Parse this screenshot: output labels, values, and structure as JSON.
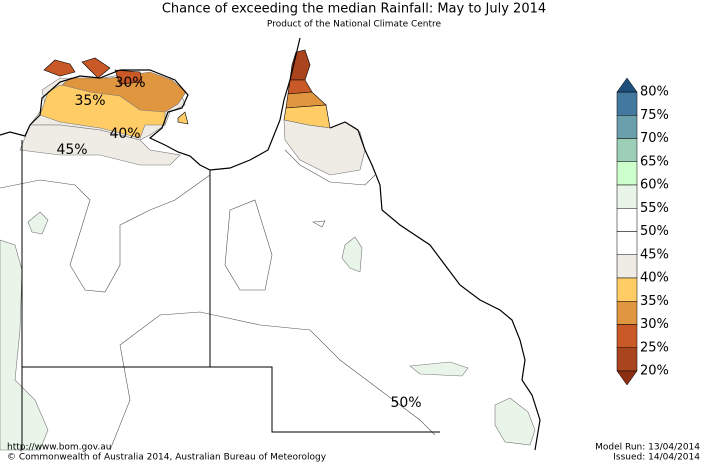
{
  "header": {
    "title": "Chance of exceeding the median Rainfall: May to July 2014",
    "subtitle": "Product of the National Climate Centre"
  },
  "map": {
    "labels": [
      "30%",
      "35%",
      "40%",
      "45%",
      "50%"
    ]
  },
  "legend": {
    "labels": [
      "80%",
      "75%",
      "70%",
      "65%",
      "60%",
      "55%",
      "50%",
      "45%",
      "40%",
      "35%",
      "30%",
      "25%",
      "20%"
    ],
    "colors": [
      "#44799f",
      "#6b9fac",
      "#9dcfb8",
      "#ccffcc",
      "#e9f5e9",
      "#ffffff",
      "#ffffff",
      "#efebe5",
      "#ffcc66",
      "#e0953f",
      "#c95a27",
      "#a9441f"
    ],
    "above_color": "#1e4f7a",
    "below_color": "#8b2e12"
  },
  "footer": {
    "url": "http://www.bom.gov.au",
    "copyright": "©  Commonwealth of Australia 2014, Australian Bureau of Meteorology",
    "model_run": "Model Run: 13/04/2014",
    "issued": "Issued: 14/04/2014"
  }
}
